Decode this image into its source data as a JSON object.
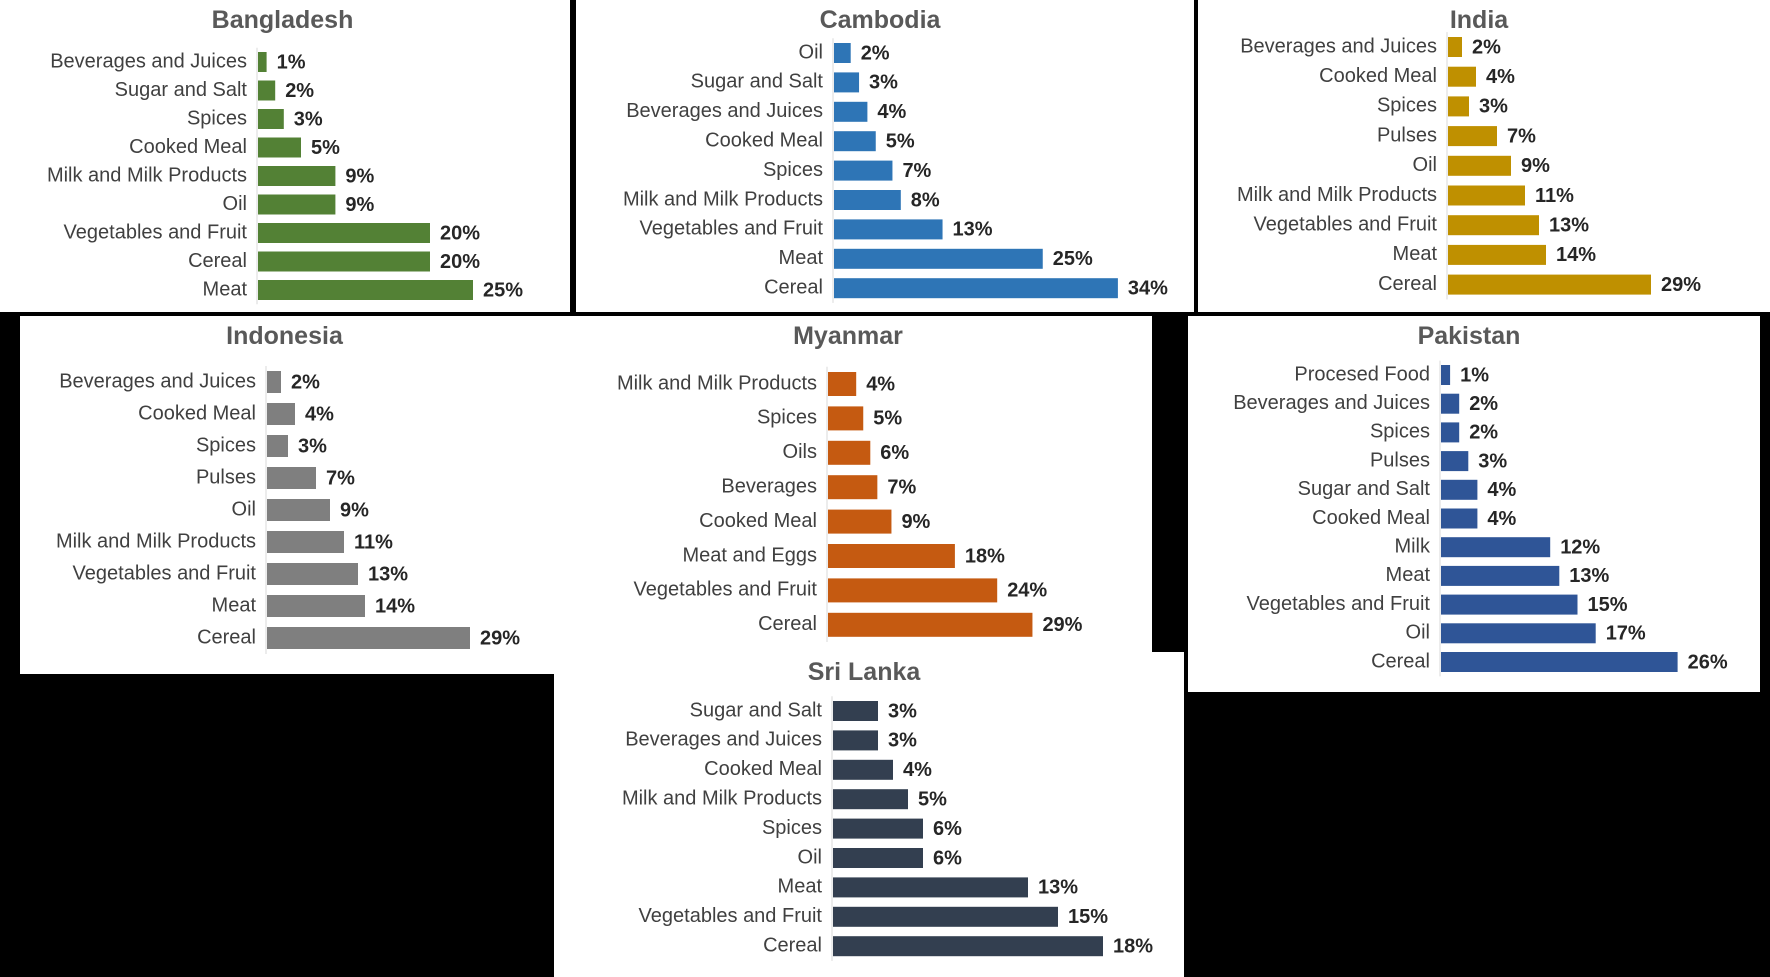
{
  "chart_data": [
    {
      "id": "bangladesh",
      "type": "bar",
      "orientation": "horizontal",
      "title": "Bangladesh",
      "color": "#538135",
      "categories": [
        "Beverages and Juices",
        "Sugar and Salt",
        "Spices",
        "Cooked Meal",
        "Milk and Milk Products",
        "Oil",
        "Vegetables and Fruit",
        "Cereal",
        "Meat"
      ],
      "values": [
        1,
        2,
        3,
        5,
        9,
        9,
        20,
        20,
        25
      ],
      "labels": [
        "1%",
        "2%",
        "3%",
        "5%",
        "9%",
        "9%",
        "20%",
        "20%",
        "25%"
      ],
      "xlim": [
        0,
        30
      ],
      "unit": "%"
    },
    {
      "id": "cambodia",
      "type": "bar",
      "orientation": "horizontal",
      "title": "Cambodia",
      "color": "#2E75B6",
      "categories": [
        "Oil",
        "Sugar and Salt",
        "Beverages and Juices",
        "Cooked Meal",
        "Spices",
        "Milk and Milk Products",
        "Vegetables and Fruit",
        "Meat",
        "Cereal"
      ],
      "values": [
        2,
        3,
        4,
        5,
        7,
        8,
        13,
        25,
        34
      ],
      "labels": [
        "2%",
        "3%",
        "4%",
        "5%",
        "7%",
        "8%",
        "13%",
        "25%",
        "34%"
      ],
      "xlim": [
        0,
        40
      ],
      "unit": "%"
    },
    {
      "id": "india",
      "type": "bar",
      "orientation": "horizontal",
      "title": "India",
      "color": "#BF9000",
      "categories": [
        "Beverages and Juices",
        "Cooked Meal",
        "Spices",
        "Pulses",
        "Oil",
        "Milk and Milk Products",
        "Vegetables and Fruit",
        "Meat",
        "Cereal"
      ],
      "values": [
        2,
        4,
        3,
        7,
        9,
        11,
        13,
        14,
        29
      ],
      "labels": [
        "2%",
        "4%",
        "3%",
        "7%",
        "9%",
        "11%",
        "13%",
        "14%",
        "29%"
      ],
      "xlim": [
        0,
        35
      ],
      "unit": "%"
    },
    {
      "id": "indonesia",
      "type": "bar",
      "orientation": "horizontal",
      "title": "Indonesia",
      "color": "#7F7F7F",
      "categories": [
        "Beverages and Juices",
        "Cooked Meal",
        "Spices",
        "Pulses",
        "Oil",
        "Milk and Milk Products",
        "Vegetables and Fruit",
        "Meat",
        "Cereal"
      ],
      "values": [
        2,
        4,
        3,
        7,
        9,
        11,
        13,
        14,
        29
      ],
      "labels": [
        "2%",
        "4%",
        "3%",
        "7%",
        "9%",
        "11%",
        "13%",
        "14%",
        "29%"
      ],
      "xlim": [
        0,
        35
      ],
      "unit": "%"
    },
    {
      "id": "myanmar",
      "type": "bar",
      "orientation": "horizontal",
      "title": "Myanmar",
      "color": "#C55A11",
      "categories": [
        "Milk and Milk Products",
        "Spices",
        "Oils",
        "Beverages",
        "Cooked Meal",
        "Meat and Eggs",
        "Vegetables and Fruit",
        "Cereal"
      ],
      "values": [
        4,
        5,
        6,
        7,
        9,
        18,
        24,
        29
      ],
      "labels": [
        "4%",
        "5%",
        "6%",
        "7%",
        "9%",
        "18%",
        "24%",
        "29%"
      ],
      "xlim": [
        0,
        35
      ],
      "unit": "%"
    },
    {
      "id": "pakistan",
      "type": "bar",
      "orientation": "horizontal",
      "title": "Pakistan",
      "color": "#2F5597",
      "categories": [
        "Procesed Food",
        "Beverages and Juices",
        "Spices",
        "Pulses",
        "Sugar and Salt",
        "Cooked Meal",
        "Milk",
        "Meat",
        "Vegetables and Fruit",
        "Oil",
        "Cereal"
      ],
      "values": [
        1,
        2,
        2,
        3,
        4,
        4,
        12,
        13,
        15,
        17,
        26
      ],
      "labels": [
        "1%",
        "2%",
        "2%",
        "3%",
        "4%",
        "4%",
        "12%",
        "13%",
        "15%",
        "17%",
        "26%"
      ],
      "xlim": [
        0,
        30
      ],
      "unit": "%"
    },
    {
      "id": "srilanka",
      "type": "bar",
      "orientation": "horizontal",
      "title": "Sri Lanka",
      "color": "#333F50",
      "categories": [
        "Sugar and Salt",
        "Beverages and Juices",
        "Cooked Meal",
        "Milk and Milk Products",
        "Spices",
        "Oil",
        "Meat",
        "Vegetables and Fruit",
        "Cereal"
      ],
      "values": [
        3,
        3,
        4,
        5,
        6,
        6,
        13,
        15,
        18
      ],
      "labels": [
        "3%",
        "3%",
        "4%",
        "5%",
        "6%",
        "6%",
        "13%",
        "15%",
        "18%"
      ],
      "xlim": [
        0,
        20
      ],
      "unit": "%"
    }
  ]
}
